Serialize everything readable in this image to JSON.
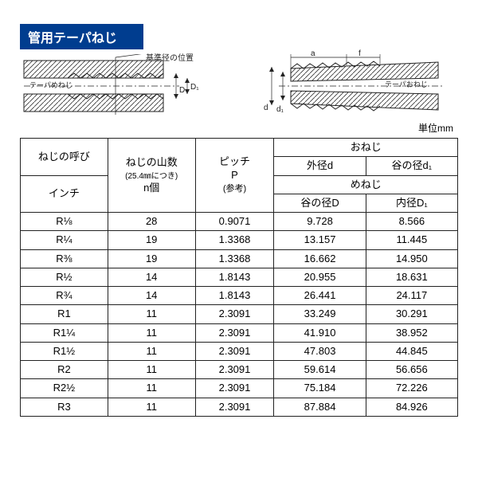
{
  "title": "管用テーパねじ",
  "unit_label": "単位mm",
  "diagram_left": {
    "inner_label": "テーパめねじ",
    "dim_top_label": "基準径の位置",
    "dim_right_1": "D",
    "dim_right_2": "D₁"
  },
  "diagram_right": {
    "inner_label": "テーパおねじ",
    "dim_top_1": "a",
    "dim_top_2": "f",
    "dim_left_1": "d",
    "dim_left_2": "d₁"
  },
  "headers": {
    "col1_top": "ねじの呼び",
    "col1_bottom": "インチ",
    "col2_l1": "ねじの山数",
    "col2_l2": "(25.4㎜につき)",
    "col2_l3": "n個",
    "col3_l1": "ピッチ",
    "col3_l2": "P",
    "col3_l3": "(参考)",
    "group_male": "おねじ",
    "male_d": "外径d",
    "male_d1": "谷の径d₁",
    "group_female": "めねじ",
    "female_D": "谷の径D",
    "female_D1": "内径D₁"
  },
  "rows": [
    {
      "name": "R⅛",
      "n": "28",
      "p": "0.9071",
      "d": "9.728",
      "d1": "8.566"
    },
    {
      "name": "R¼",
      "n": "19",
      "p": "1.3368",
      "d": "13.157",
      "d1": "11.445"
    },
    {
      "name": "R⅜",
      "n": "19",
      "p": "1.3368",
      "d": "16.662",
      "d1": "14.950"
    },
    {
      "name": "R½",
      "n": "14",
      "p": "1.8143",
      "d": "20.955",
      "d1": "18.631"
    },
    {
      "name": "R¾",
      "n": "14",
      "p": "1.8143",
      "d": "26.441",
      "d1": "24.117"
    },
    {
      "name": "R1",
      "n": "11",
      "p": "2.3091",
      "d": "33.249",
      "d1": "30.291"
    },
    {
      "name": "R1¼",
      "n": "11",
      "p": "2.3091",
      "d": "41.910",
      "d1": "38.952"
    },
    {
      "name": "R1½",
      "n": "11",
      "p": "2.3091",
      "d": "47.803",
      "d1": "44.845"
    },
    {
      "name": "R2",
      "n": "11",
      "p": "2.3091",
      "d": "59.614",
      "d1": "56.656"
    },
    {
      "name": "R2½",
      "n": "11",
      "p": "2.3091",
      "d": "75.184",
      "d1": "72.226"
    },
    {
      "name": "R3",
      "n": "11",
      "p": "2.3091",
      "d": "87.884",
      "d1": "84.926"
    }
  ],
  "colors": {
    "title_bg": "#003d8f",
    "title_fg": "#ffffff",
    "border": "#222222",
    "hatch": "#333333"
  }
}
